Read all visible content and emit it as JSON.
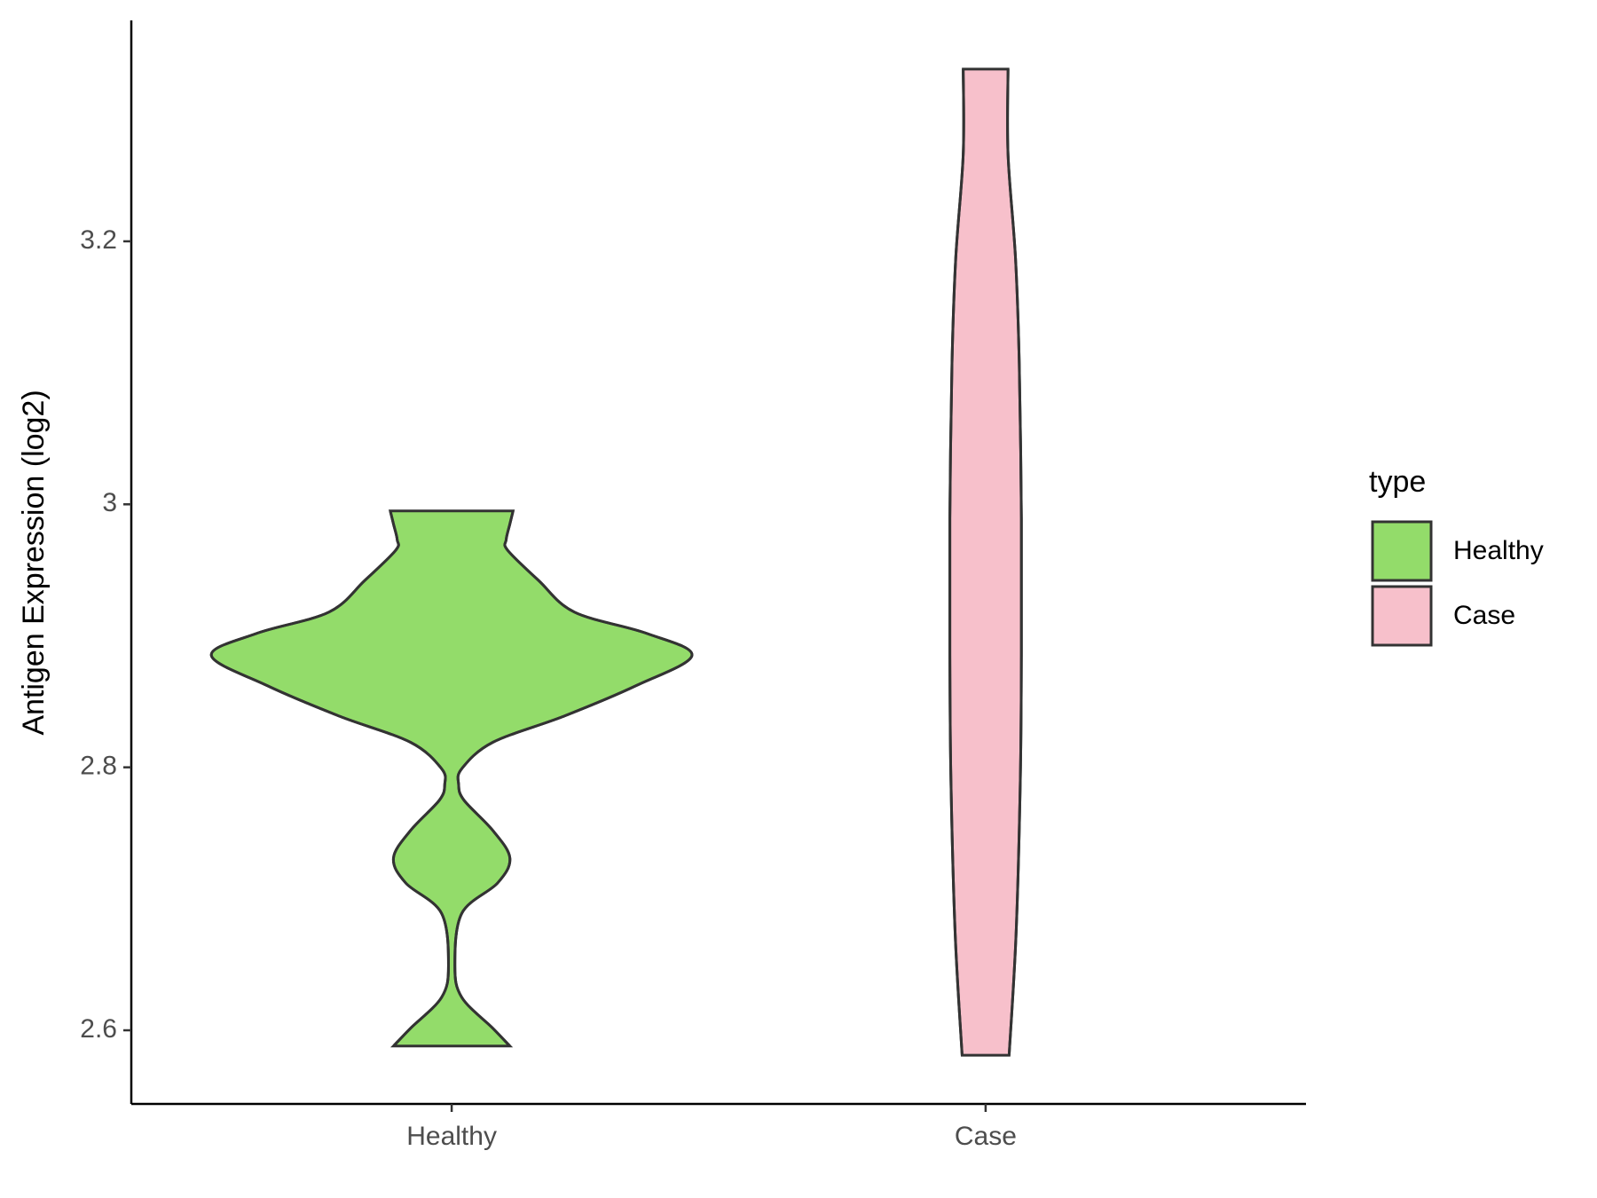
{
  "chart_data": {
    "type": "violin",
    "y_label": "Antigen Expression (log2)",
    "categories": [
      "Healthy",
      "Case"
    ],
    "ylim": [
      2.544,
      3.368
    ],
    "yticks": [
      2.6,
      2.8,
      3.0,
      3.2
    ],
    "legend_title": "type",
    "legend_position": "right",
    "series": [
      {
        "name": "Healthy",
        "color": "#93dc6a",
        "min": 2.588,
        "max": 2.995,
        "density_y": [
          2.588,
          2.6016,
          2.625,
          2.649,
          2.689,
          2.712,
          2.731,
          2.752,
          2.775,
          2.787,
          2.799,
          2.819,
          2.839,
          2.862,
          2.885,
          2.902,
          2.918,
          2.942,
          2.965,
          2.973,
          2.985,
          2.995
        ],
        "half_width": [
          0.109,
          0.077,
          0.019,
          0.006,
          0.019,
          0.086,
          0.109,
          0.077,
          0.023,
          0.013,
          0.019,
          0.077,
          0.211,
          0.345,
          0.45,
          0.364,
          0.23,
          0.163,
          0.105,
          0.102,
          0.109,
          0.115
        ]
      },
      {
        "name": "Case",
        "color": "#f7c0cb",
        "min": 2.581,
        "max": 3.331,
        "density_y": [
          2.581,
          2.673,
          2.791,
          2.886,
          2.989,
          3.107,
          3.187,
          3.266,
          3.331
        ],
        "half_width": [
          0.044,
          0.057,
          0.065,
          0.067,
          0.067,
          0.063,
          0.056,
          0.042,
          0.042
        ]
      }
    ]
  }
}
